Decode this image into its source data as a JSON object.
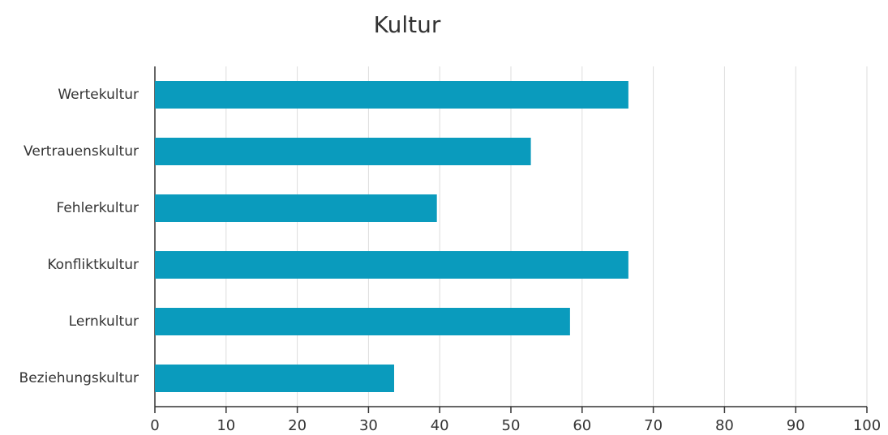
{
  "chart_data": {
    "type": "bar",
    "orientation": "horizontal",
    "title": "Kultur",
    "categories": [
      "Wertekultur",
      "Vertrauenskultur",
      "Fehlerkultur",
      "Konfliktkultur",
      "Lernkultur",
      "Beziehungskultur"
    ],
    "values": [
      66.5,
      52.8,
      39.6,
      66.5,
      58.3,
      33.6
    ],
    "color": "#0a9bbd",
    "xlim": [
      0,
      100
    ],
    "xticks": [
      0,
      10,
      20,
      30,
      40,
      50,
      60,
      70,
      80,
      90,
      100
    ],
    "grid": true
  }
}
